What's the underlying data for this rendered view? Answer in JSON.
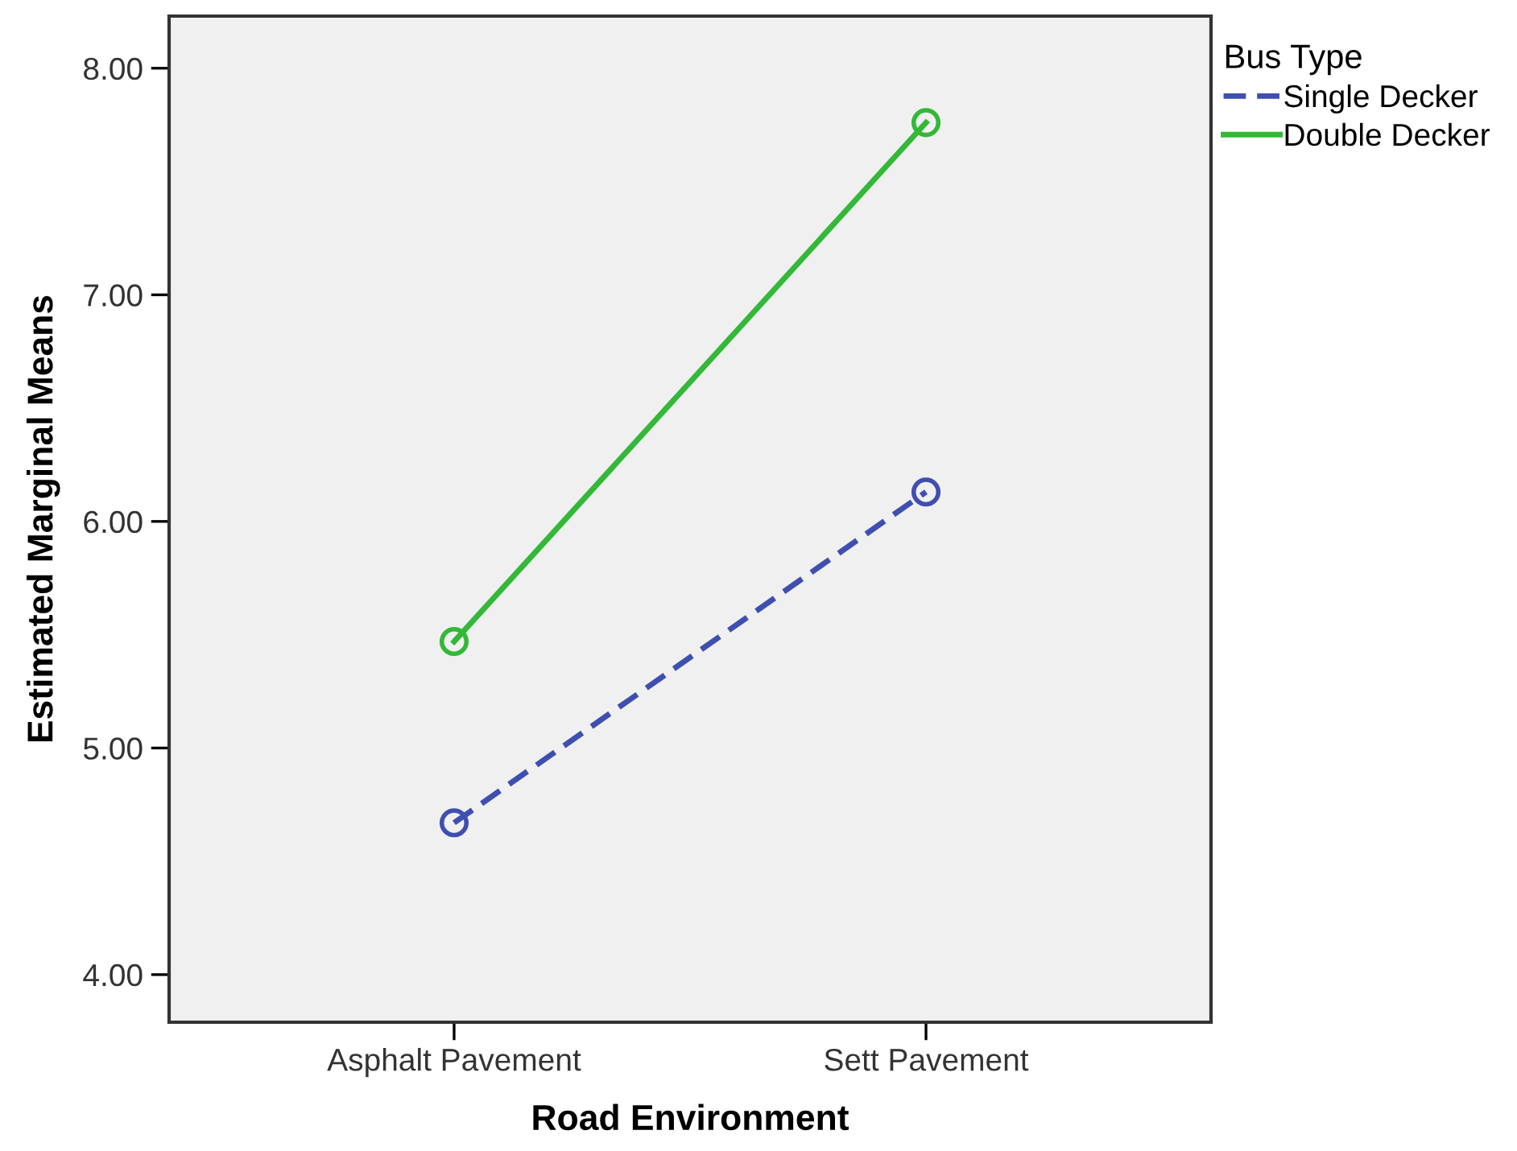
{
  "chart_data": {
    "type": "line",
    "xlabel": "Road Environment",
    "ylabel": "Estimated Marginal Means",
    "legend_title": "Bus Type",
    "categories": [
      "Asphalt Pavement",
      "Sett Pavement"
    ],
    "series": [
      {
        "name": "Single Decker",
        "color": "#3f4fb0",
        "values": [
          4.67,
          6.13
        ],
        "line_style": "dashed"
      },
      {
        "name": "Double Decker",
        "color": "#33b838",
        "values": [
          5.47,
          7.76
        ],
        "line_style": "solid"
      }
    ],
    "ylim": [
      3.79,
      8.23
    ],
    "yticks": [
      {
        "value": 4,
        "label": "4.00"
      },
      {
        "value": 5,
        "label": "5.00"
      },
      {
        "value": 6,
        "label": "6.00"
      },
      {
        "value": 7,
        "label": "7.00"
      },
      {
        "value": 8,
        "label": "8.00"
      }
    ],
    "marker": "circle",
    "grid": false,
    "legend": "top right"
  }
}
